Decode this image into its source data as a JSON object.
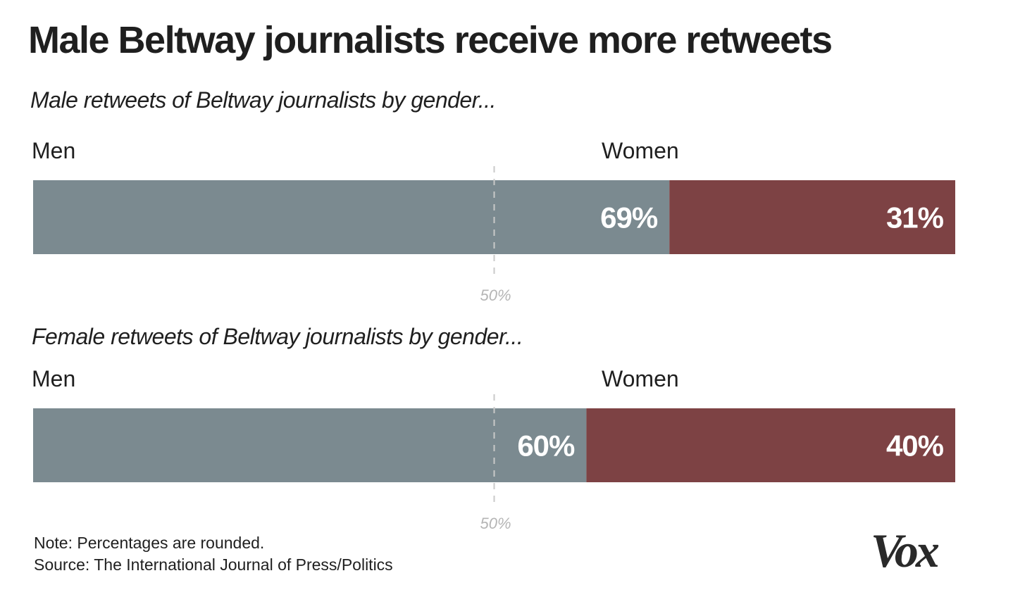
{
  "title": "Male Beltway journalists receive more retweets",
  "chart_data": [
    {
      "type": "bar",
      "orientation": "horizontal-stacked-100",
      "title": "Male retweets of Beltway journalists by gender...",
      "categories": [
        "Men",
        "Women"
      ],
      "values": [
        69,
        31
      ],
      "value_labels": [
        "69%",
        "31%"
      ],
      "reference_line": {
        "value": 50,
        "label": "50%"
      },
      "xlim": [
        0,
        100
      ],
      "colors": [
        "#7b8a90",
        "#7d4244"
      ]
    },
    {
      "type": "bar",
      "orientation": "horizontal-stacked-100",
      "title": "Female retweets of Beltway journalists by gender...",
      "categories": [
        "Men",
        "Women"
      ],
      "values": [
        60,
        40
      ],
      "value_labels": [
        "60%",
        "40%"
      ],
      "reference_line": {
        "value": 50,
        "label": "50%"
      },
      "xlim": [
        0,
        100
      ],
      "colors": [
        "#7b8a90",
        "#7d4244"
      ]
    }
  ],
  "footer": {
    "note": "Note: Percentages are rounded.",
    "source": "Source: The International Journal of Press/Politics"
  },
  "logo": {
    "text": "Vox"
  }
}
